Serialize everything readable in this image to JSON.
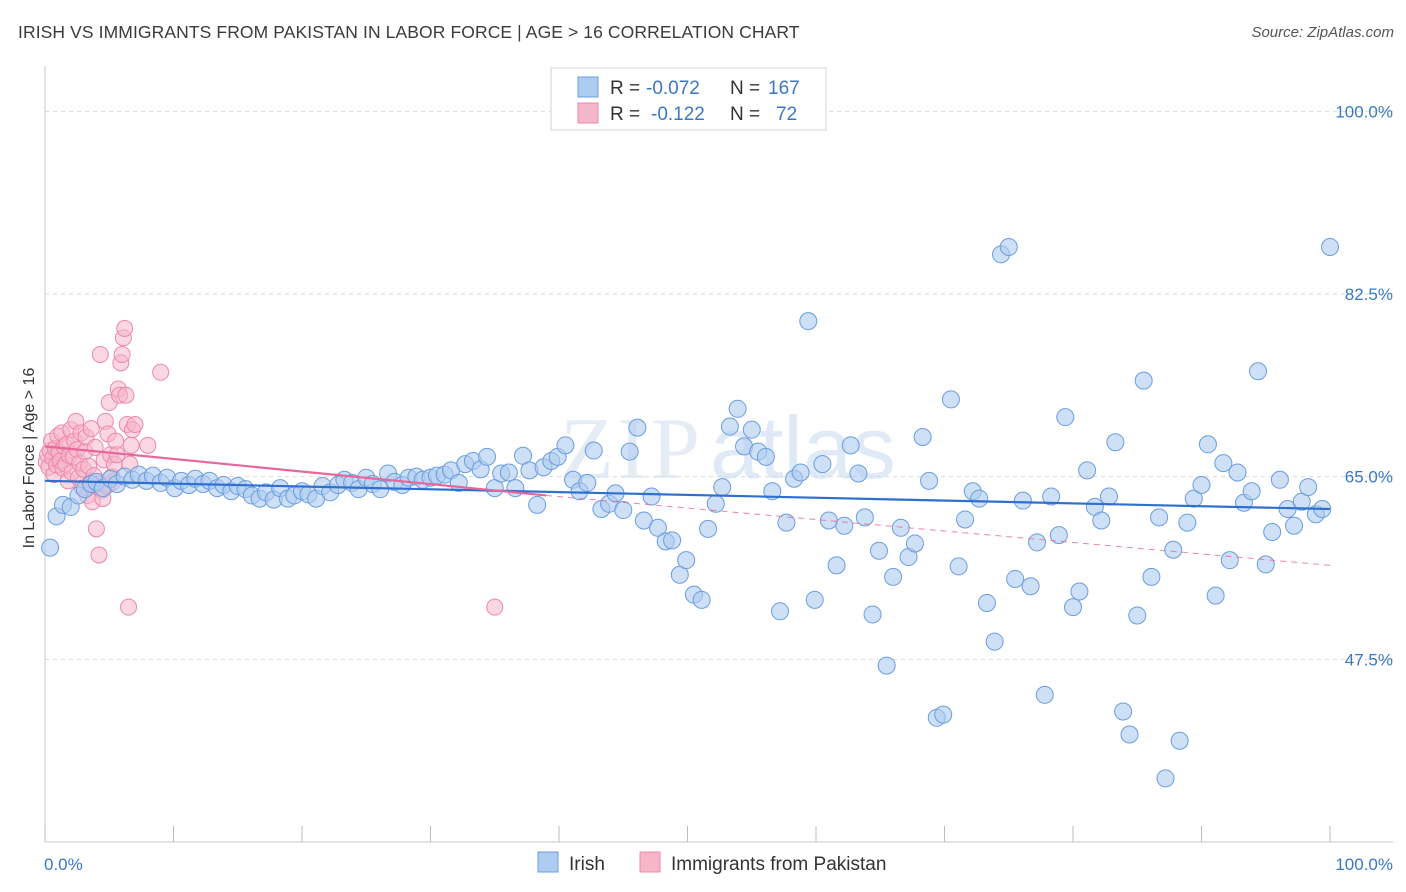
{
  "title": "IRISH VS IMMIGRANTS FROM PAKISTAN IN LABOR FORCE | AGE > 16 CORRELATION CHART",
  "source": "Source: ZipAtlas.com",
  "watermark": "ZIPatlas",
  "colors": {
    "irish_fill": "#aecbf0",
    "irish_stroke": "#6a9de0",
    "irish_line": "#2f6fce",
    "pak_fill": "#f6b6ca",
    "pak_stroke": "#ec88aa",
    "pak_line": "#e8679a",
    "tick_text": "#3a77c9",
    "grid": "#d9d9d9"
  },
  "legend": {
    "rows": [
      {
        "r_label": "R =",
        "r_value": "-0.072",
        "n_label": "N =",
        "n_value": "167"
      },
      {
        "r_label": "R =",
        "r_value": "-0.122",
        "n_label": "N =",
        "n_value": "72"
      }
    ]
  },
  "chart_data": {
    "type": "scatter",
    "title": "IRISH VS IMMIGRANTS FROM PAKISTAN IN LABOR FORCE | AGE > 16 CORRELATION CHART",
    "xlabel": "",
    "ylabel": "In Labor Force | Age > 16",
    "xlim": [
      0,
      100
    ],
    "ylim": [
      30,
      103
    ],
    "x_tick_labels": [
      "0.0%",
      "100.0%"
    ],
    "y_ticks": [
      47.5,
      65.0,
      82.5,
      100.0
    ],
    "y_tick_labels": [
      "47.5%",
      "65.0%",
      "82.5%",
      "100.0%"
    ],
    "grid": true,
    "legend_position": "top-center",
    "series": [
      {
        "name": "Irish",
        "r": -0.072,
        "n": 167,
        "trend": {
          "x": [
            0,
            100
          ],
          "y": [
            64.6,
            61.9
          ]
        },
        "points": [
          [
            0.4,
            58.2
          ],
          [
            0.9,
            61.2
          ],
          [
            1.4,
            62.3
          ],
          [
            2.0,
            62.1
          ],
          [
            2.6,
            63.2
          ],
          [
            3.1,
            63.8
          ],
          [
            3.6,
            64.3
          ],
          [
            4.0,
            64.5
          ],
          [
            4.5,
            63.9
          ],
          [
            5.1,
            64.8
          ],
          [
            5.6,
            64.3
          ],
          [
            6.2,
            65.0
          ],
          [
            6.8,
            64.7
          ],
          [
            7.3,
            65.2
          ],
          [
            7.9,
            64.6
          ],
          [
            8.4,
            65.1
          ],
          [
            9.0,
            64.4
          ],
          [
            9.5,
            64.9
          ],
          [
            10.1,
            63.9
          ],
          [
            10.6,
            64.6
          ],
          [
            11.2,
            64.2
          ],
          [
            11.7,
            64.8
          ],
          [
            12.3,
            64.3
          ],
          [
            12.8,
            64.6
          ],
          [
            13.4,
            63.9
          ],
          [
            13.9,
            64.2
          ],
          [
            14.5,
            63.6
          ],
          [
            15.0,
            64.1
          ],
          [
            15.6,
            63.8
          ],
          [
            16.1,
            63.2
          ],
          [
            16.7,
            62.9
          ],
          [
            17.2,
            63.5
          ],
          [
            17.8,
            62.8
          ],
          [
            18.3,
            63.9
          ],
          [
            18.9,
            62.9
          ],
          [
            19.4,
            63.2
          ],
          [
            20.0,
            63.6
          ],
          [
            20.5,
            63.3
          ],
          [
            21.1,
            62.9
          ],
          [
            21.6,
            64.1
          ],
          [
            22.2,
            63.5
          ],
          [
            22.8,
            64.2
          ],
          [
            23.3,
            64.7
          ],
          [
            23.9,
            64.4
          ],
          [
            24.4,
            63.8
          ],
          [
            25.0,
            64.9
          ],
          [
            25.5,
            64.3
          ],
          [
            26.1,
            63.8
          ],
          [
            26.7,
            65.3
          ],
          [
            27.2,
            64.5
          ],
          [
            27.8,
            64.2
          ],
          [
            28.3,
            64.9
          ],
          [
            28.9,
            65.0
          ],
          [
            29.4,
            64.7
          ],
          [
            30.0,
            64.9
          ],
          [
            30.5,
            65.1
          ],
          [
            31.1,
            65.2
          ],
          [
            31.6,
            65.6
          ],
          [
            32.2,
            64.4
          ],
          [
            32.7,
            66.2
          ],
          [
            33.3,
            66.5
          ],
          [
            33.9,
            65.7
          ],
          [
            34.4,
            66.9
          ],
          [
            35.0,
            63.9
          ],
          [
            35.5,
            65.3
          ],
          [
            36.1,
            65.4
          ],
          [
            36.6,
            63.9
          ],
          [
            37.2,
            67.0
          ],
          [
            37.7,
            65.6
          ],
          [
            38.3,
            62.3
          ],
          [
            38.8,
            65.9
          ],
          [
            39.4,
            66.5
          ],
          [
            39.9,
            66.9
          ],
          [
            40.5,
            68.0
          ],
          [
            41.1,
            64.7
          ],
          [
            41.6,
            63.6
          ],
          [
            42.2,
            64.4
          ],
          [
            42.7,
            67.5
          ],
          [
            43.3,
            61.9
          ],
          [
            43.9,
            62.4
          ],
          [
            44.4,
            63.4
          ],
          [
            45.0,
            61.8
          ],
          [
            45.5,
            67.4
          ],
          [
            46.1,
            69.7
          ],
          [
            46.6,
            60.8
          ],
          [
            47.2,
            63.1
          ],
          [
            47.7,
            60.1
          ],
          [
            48.3,
            58.8
          ],
          [
            48.8,
            58.9
          ],
          [
            49.4,
            55.6
          ],
          [
            49.9,
            57.0
          ],
          [
            50.5,
            53.7
          ],
          [
            51.1,
            53.2
          ],
          [
            51.6,
            60.0
          ],
          [
            52.2,
            62.4
          ],
          [
            52.7,
            64.0
          ],
          [
            53.3,
            69.8
          ],
          [
            53.9,
            71.5
          ],
          [
            54.4,
            67.9
          ],
          [
            55.0,
            69.5
          ],
          [
            55.5,
            67.4
          ],
          [
            56.1,
            66.9
          ],
          [
            56.6,
            63.6
          ],
          [
            57.2,
            52.1
          ],
          [
            57.7,
            60.6
          ],
          [
            58.3,
            64.8
          ],
          [
            58.8,
            65.4
          ],
          [
            59.4,
            79.9
          ],
          [
            59.9,
            53.2
          ],
          [
            60.5,
            66.2
          ],
          [
            61.0,
            60.8
          ],
          [
            61.6,
            56.5
          ],
          [
            62.2,
            60.3
          ],
          [
            62.7,
            68.0
          ],
          [
            63.3,
            65.3
          ],
          [
            63.8,
            61.1
          ],
          [
            64.4,
            51.8
          ],
          [
            64.9,
            57.9
          ],
          [
            65.5,
            46.9
          ],
          [
            66.0,
            55.4
          ],
          [
            66.6,
            60.1
          ],
          [
            67.2,
            57.3
          ],
          [
            67.7,
            58.6
          ],
          [
            68.3,
            68.8
          ],
          [
            68.8,
            64.6
          ],
          [
            69.4,
            41.9
          ],
          [
            69.9,
            42.2
          ],
          [
            70.5,
            72.4
          ],
          [
            71.1,
            56.4
          ],
          [
            71.6,
            60.9
          ],
          [
            72.2,
            63.6
          ],
          [
            72.7,
            62.9
          ],
          [
            73.3,
            52.9
          ],
          [
            73.9,
            49.2
          ],
          [
            74.4,
            86.3
          ],
          [
            75.0,
            87.0
          ],
          [
            75.5,
            55.2
          ],
          [
            76.1,
            62.7
          ],
          [
            76.7,
            54.5
          ],
          [
            77.2,
            58.7
          ],
          [
            77.8,
            44.1
          ],
          [
            78.3,
            63.1
          ],
          [
            78.9,
            59.4
          ],
          [
            79.4,
            70.7
          ],
          [
            80.0,
            52.5
          ],
          [
            80.5,
            54.0
          ],
          [
            81.1,
            65.6
          ],
          [
            81.7,
            62.1
          ],
          [
            82.2,
            60.8
          ],
          [
            82.8,
            63.1
          ],
          [
            83.3,
            68.3
          ],
          [
            83.9,
            42.5
          ],
          [
            84.4,
            40.3
          ],
          [
            85.0,
            51.7
          ],
          [
            85.5,
            74.2
          ],
          [
            86.1,
            55.4
          ],
          [
            86.7,
            61.1
          ],
          [
            87.2,
            36.1
          ],
          [
            87.8,
            58.0
          ],
          [
            88.3,
            39.7
          ],
          [
            88.9,
            60.6
          ],
          [
            89.4,
            62.9
          ],
          [
            90.0,
            64.2
          ],
          [
            90.5,
            68.1
          ],
          [
            91.1,
            53.6
          ],
          [
            91.7,
            66.3
          ],
          [
            92.2,
            57.0
          ],
          [
            92.8,
            65.4
          ],
          [
            93.3,
            62.5
          ],
          [
            93.9,
            63.6
          ],
          [
            94.4,
            75.1
          ],
          [
            95.0,
            56.6
          ],
          [
            95.5,
            59.7
          ],
          [
            96.1,
            64.7
          ],
          [
            96.7,
            61.9
          ],
          [
            97.2,
            60.3
          ],
          [
            97.8,
            62.6
          ],
          [
            98.3,
            64.0
          ],
          [
            98.9,
            61.4
          ],
          [
            99.4,
            61.9
          ],
          [
            100.0,
            87.0
          ]
        ]
      },
      {
        "name": "Immigrants from Pakistan",
        "r": -0.122,
        "n": 72,
        "trend": {
          "x": [
            0,
            39
          ],
          "y": [
            67.9,
            63.2
          ]
        },
        "trend_extended": {
          "x": [
            39,
            100
          ],
          "y": [
            63.2,
            56.5
          ]
        },
        "points": [
          [
            0.1,
            66.4
          ],
          [
            0.2,
            67.1
          ],
          [
            0.3,
            65.9
          ],
          [
            0.4,
            67.5
          ],
          [
            0.5,
            68.4
          ],
          [
            0.6,
            66.8
          ],
          [
            0.7,
            65.2
          ],
          [
            0.8,
            67.7
          ],
          [
            0.9,
            66.1
          ],
          [
            1.0,
            68.9
          ],
          [
            1.1,
            67.3
          ],
          [
            1.2,
            66.5
          ],
          [
            1.3,
            69.2
          ],
          [
            1.4,
            65.8
          ],
          [
            1.5,
            67.9
          ],
          [
            1.6,
            66.2
          ],
          [
            1.7,
            68.1
          ],
          [
            1.8,
            64.6
          ],
          [
            1.9,
            67.0
          ],
          [
            2.0,
            69.5
          ],
          [
            2.1,
            65.4
          ],
          [
            2.2,
            66.9
          ],
          [
            2.3,
            68.4
          ],
          [
            2.4,
            70.3
          ],
          [
            2.5,
            67.6
          ],
          [
            2.6,
            64.9
          ],
          [
            2.7,
            66.3
          ],
          [
            2.8,
            69.2
          ],
          [
            2.9,
            63.9
          ],
          [
            3.0,
            65.7
          ],
          [
            3.1,
            67.4
          ],
          [
            3.2,
            68.8
          ],
          [
            3.3,
            63.2
          ],
          [
            3.4,
            66.0
          ],
          [
            3.5,
            64.4
          ],
          [
            3.6,
            69.6
          ],
          [
            3.7,
            62.6
          ],
          [
            3.8,
            65.1
          ],
          [
            3.9,
            67.8
          ],
          [
            4.0,
            60.0
          ],
          [
            4.1,
            64.3
          ],
          [
            4.2,
            57.5
          ],
          [
            4.3,
            76.7
          ],
          [
            4.4,
            63.7
          ],
          [
            4.5,
            62.9
          ],
          [
            4.6,
            66.6
          ],
          [
            4.7,
            70.3
          ],
          [
            4.8,
            64.1
          ],
          [
            4.9,
            69.1
          ],
          [
            5.0,
            72.1
          ],
          [
            5.1,
            67.1
          ],
          [
            5.2,
            65.0
          ],
          [
            5.3,
            64.5
          ],
          [
            5.4,
            66.2
          ],
          [
            5.5,
            68.4
          ],
          [
            5.6,
            67.1
          ],
          [
            5.7,
            73.4
          ],
          [
            5.8,
            72.8
          ],
          [
            5.9,
            75.9
          ],
          [
            6.0,
            76.7
          ],
          [
            6.1,
            78.3
          ],
          [
            6.2,
            79.2
          ],
          [
            6.3,
            72.8
          ],
          [
            6.4,
            70.0
          ],
          [
            6.5,
            52.5
          ],
          [
            6.6,
            66.2
          ],
          [
            6.7,
            68.0
          ],
          [
            6.8,
            69.5
          ],
          [
            7.0,
            70.0
          ],
          [
            8.0,
            68.0
          ],
          [
            9.0,
            75.0
          ],
          [
            35.0,
            52.5
          ]
        ]
      }
    ]
  },
  "bottom_legend": {
    "items": [
      {
        "label": "Irish"
      },
      {
        "label": "Immigrants from Pakistan"
      }
    ]
  }
}
